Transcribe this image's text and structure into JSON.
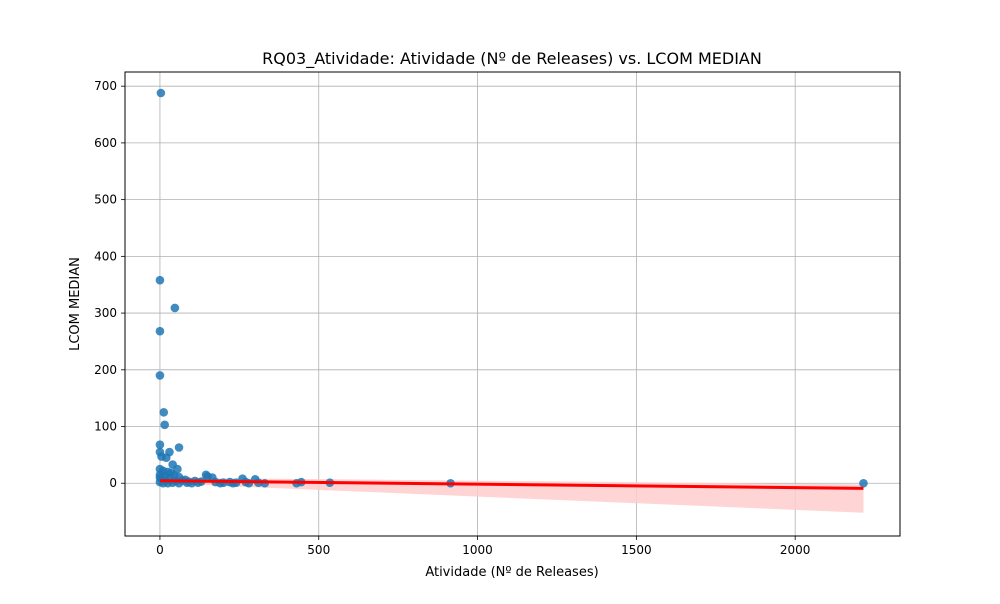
{
  "chart_data": {
    "type": "scatter",
    "title": "RQ03_Atividade: Atividade (Nº de Releases) vs. LCOM MEDIAN",
    "xlabel": "Atividade (Nº de Releases)",
    "ylabel": "LCOM MEDIAN",
    "xlim": [
      -110,
      2330
    ],
    "ylim": [
      -93,
      725
    ],
    "xticks": [
      0,
      500,
      1000,
      1500,
      2000
    ],
    "yticks": [
      0,
      100,
      200,
      300,
      400,
      500,
      600,
      700
    ],
    "grid": true,
    "point_color": "#1f77b4",
    "line_color": "#ff0000",
    "band_color": "#ffcccc",
    "series": [
      {
        "values": [
          [
            3,
            688
          ],
          [
            0,
            358
          ],
          [
            47,
            309
          ],
          [
            0,
            268
          ],
          [
            0,
            190
          ],
          [
            12,
            125
          ],
          [
            15,
            103
          ],
          [
            0,
            68
          ],
          [
            60,
            63
          ],
          [
            0,
            55
          ],
          [
            30,
            55
          ],
          [
            5,
            47
          ],
          [
            20,
            45
          ],
          [
            40,
            33
          ],
          [
            55,
            25
          ],
          [
            0,
            25
          ],
          [
            10,
            22
          ],
          [
            25,
            20
          ],
          [
            35,
            18
          ],
          [
            0,
            15
          ],
          [
            45,
            14
          ],
          [
            15,
            12
          ],
          [
            60,
            11
          ],
          [
            0,
            10
          ],
          [
            30,
            9
          ],
          [
            5,
            8
          ],
          [
            80,
            6
          ],
          [
            70,
            5
          ],
          [
            145,
            15
          ],
          [
            150,
            12
          ],
          [
            165,
            10
          ],
          [
            260,
            8
          ],
          [
            300,
            7
          ],
          [
            20,
            5
          ],
          [
            50,
            4
          ],
          [
            90,
            3
          ],
          [
            110,
            4
          ],
          [
            130,
            3
          ],
          [
            175,
            2
          ],
          [
            200,
            1
          ],
          [
            220,
            2
          ],
          [
            240,
            1
          ],
          [
            270,
            2
          ],
          [
            310,
            1
          ],
          [
            330,
            0
          ],
          [
            100,
            0
          ],
          [
            120,
            1
          ],
          [
            60,
            0
          ],
          [
            40,
            1
          ],
          [
            10,
            0
          ],
          [
            0,
            2
          ],
          [
            25,
            0
          ],
          [
            85,
            1
          ],
          [
            190,
            0
          ],
          [
            230,
            0
          ],
          [
            280,
            0
          ],
          [
            430,
            0
          ],
          [
            445,
            2
          ],
          [
            535,
            1
          ],
          [
            915,
            0
          ],
          [
            2215,
            0
          ]
        ]
      }
    ],
    "regression": {
      "x": [
        0,
        2215
      ],
      "y": [
        4.5,
        -9
      ],
      "ci_lower": [
        0,
        -52
      ],
      "ci_upper": [
        10,
        -2
      ]
    }
  }
}
